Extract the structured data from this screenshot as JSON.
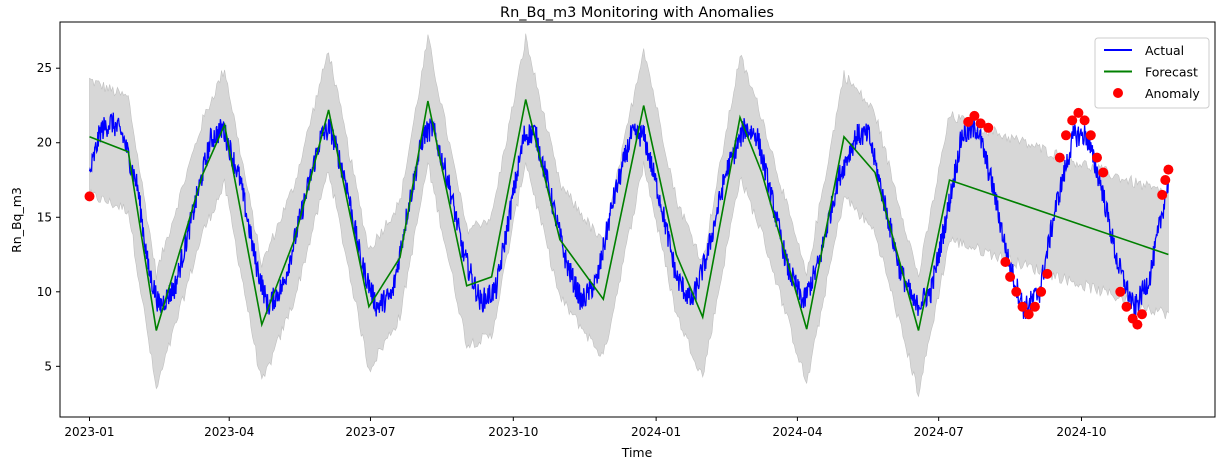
{
  "chart_data": {
    "type": "line",
    "title": "Rn_Bq_m3 Monitoring with Anomalies",
    "xlabel": "Time",
    "ylabel": "Rn_Bq_m3",
    "xlim": [
      "2022-12-13",
      "2024-12-26"
    ],
    "ylim": [
      1.6,
      28.1
    ],
    "grid": false,
    "legend_position": "top-right",
    "x_ticks": [
      "2023-01",
      "2023-04",
      "2023-07",
      "2023-10",
      "2024-01",
      "2024-04",
      "2024-07",
      "2024-10"
    ],
    "y_ticks": [
      5,
      10,
      15,
      20,
      25
    ],
    "series": [
      {
        "name": "Actual",
        "style": "line",
        "color": "#0000ff",
        "description": "daily readings with high-frequency noise of roughly ±0.8",
        "points": [
          [
            "2023-01-01",
            17.8
          ],
          [
            "2023-01-08",
            20.8
          ],
          [
            "2023-01-15",
            21.4
          ],
          [
            "2023-01-22",
            20.6
          ],
          [
            "2023-02-01",
            17.0
          ],
          [
            "2023-02-08",
            11.5
          ],
          [
            "2023-02-15",
            9.0
          ],
          [
            "2023-02-25",
            10.3
          ],
          [
            "2023-03-08",
            15.0
          ],
          [
            "2023-03-20",
            20.2
          ],
          [
            "2023-03-28",
            21.0
          ],
          [
            "2023-04-08",
            17.5
          ],
          [
            "2023-04-18",
            12.0
          ],
          [
            "2023-04-26",
            9.0
          ],
          [
            "2023-05-06",
            10.5
          ],
          [
            "2023-05-18",
            15.5
          ],
          [
            "2023-05-30",
            20.4
          ],
          [
            "2023-06-05",
            21.0
          ],
          [
            "2023-06-15",
            17.5
          ],
          [
            "2023-06-25",
            12.0
          ],
          [
            "2023-07-05",
            9.0
          ],
          [
            "2023-07-15",
            9.8
          ],
          [
            "2023-07-25",
            15.5
          ],
          [
            "2023-08-04",
            20.5
          ],
          [
            "2023-08-10",
            21.0
          ],
          [
            "2023-08-20",
            17.5
          ],
          [
            "2023-08-30",
            12.5
          ],
          [
            "2023-09-10",
            9.3
          ],
          [
            "2023-09-20",
            10.2
          ],
          [
            "2023-09-30",
            16.0
          ],
          [
            "2023-10-08",
            20.5
          ],
          [
            "2023-10-15",
            20.7
          ],
          [
            "2023-10-25",
            16.5
          ],
          [
            "2023-11-04",
            12.0
          ],
          [
            "2023-11-14",
            9.3
          ],
          [
            "2023-11-24",
            10.8
          ],
          [
            "2023-12-04",
            16.0
          ],
          [
            "2023-12-16",
            20.5
          ],
          [
            "2023-12-24",
            20.5
          ],
          [
            "2024-01-04",
            16.0
          ],
          [
            "2024-01-14",
            11.0
          ],
          [
            "2024-01-24",
            9.3
          ],
          [
            "2024-02-03",
            12.5
          ],
          [
            "2024-02-15",
            18.0
          ],
          [
            "2024-02-27",
            21.0
          ],
          [
            "2024-03-06",
            20.5
          ],
          [
            "2024-03-16",
            16.0
          ],
          [
            "2024-03-26",
            11.5
          ],
          [
            "2024-04-05",
            9.3
          ],
          [
            "2024-04-15",
            12.0
          ],
          [
            "2024-04-27",
            17.5
          ],
          [
            "2024-05-09",
            20.5
          ],
          [
            "2024-05-17",
            20.5
          ],
          [
            "2024-05-27",
            16.0
          ],
          [
            "2024-06-06",
            11.5
          ],
          [
            "2024-06-16",
            9.0
          ],
          [
            "2024-06-26",
            10.0
          ],
          [
            "2024-07-06",
            15.0
          ],
          [
            "2024-07-16",
            20.5
          ],
          [
            "2024-07-26",
            21.0
          ],
          [
            "2024-08-05",
            17.0
          ],
          [
            "2024-08-15",
            12.0
          ],
          [
            "2024-08-25",
            8.8
          ],
          [
            "2024-09-04",
            10.0
          ],
          [
            "2024-09-14",
            15.5
          ],
          [
            "2024-09-26",
            20.5
          ],
          [
            "2024-10-04",
            20.5
          ],
          [
            "2024-10-14",
            17.0
          ],
          [
            "2024-10-24",
            12.0
          ],
          [
            "2024-11-04",
            8.8
          ],
          [
            "2024-11-14",
            11.0
          ],
          [
            "2024-11-26",
            17.5
          ]
        ]
      },
      {
        "name": "Forecast",
        "style": "line",
        "color": "#008000",
        "points": [
          [
            "2023-01-01",
            20.4
          ],
          [
            "2023-01-26",
            19.4
          ],
          [
            "2023-02-13",
            7.4
          ],
          [
            "2023-03-15",
            17.9
          ],
          [
            "2023-03-29",
            21.2
          ],
          [
            "2023-04-22",
            7.8
          ],
          [
            "2023-05-13",
            13.5
          ],
          [
            "2023-06-04",
            22.2
          ],
          [
            "2023-06-30",
            9.0
          ],
          [
            "2023-07-20",
            12.3
          ],
          [
            "2023-08-07",
            22.8
          ],
          [
            "2023-09-01",
            10.4
          ],
          [
            "2023-09-17",
            11.0
          ],
          [
            "2023-10-09",
            22.9
          ],
          [
            "2023-10-31",
            13.5
          ],
          [
            "2023-11-28",
            9.5
          ],
          [
            "2023-12-24",
            22.5
          ],
          [
            "2024-01-14",
            12.5
          ],
          [
            "2024-01-31",
            8.3
          ],
          [
            "2024-02-24",
            21.7
          ],
          [
            "2024-03-09",
            18.0
          ],
          [
            "2024-04-07",
            7.5
          ],
          [
            "2024-05-01",
            20.4
          ],
          [
            "2024-05-21",
            18.0
          ],
          [
            "2024-06-18",
            7.4
          ],
          [
            "2024-07-08",
            17.5
          ],
          [
            "2024-11-26",
            12.5
          ]
        ]
      },
      {
        "name": "Anomaly",
        "style": "scatter",
        "color": "#ff0000",
        "points": [
          [
            "2023-01-01",
            16.4
          ],
          [
            "2024-07-20",
            21.4
          ],
          [
            "2024-07-24",
            21.8
          ],
          [
            "2024-07-28",
            21.3
          ],
          [
            "2024-08-02",
            21.0
          ],
          [
            "2024-08-13",
            12.0
          ],
          [
            "2024-08-16",
            11.0
          ],
          [
            "2024-08-20",
            10.0
          ],
          [
            "2024-08-24",
            9.0
          ],
          [
            "2024-08-28",
            8.5
          ],
          [
            "2024-09-01",
            9.0
          ],
          [
            "2024-09-05",
            10.0
          ],
          [
            "2024-09-09",
            11.2
          ],
          [
            "2024-09-17",
            19.0
          ],
          [
            "2024-09-21",
            20.5
          ],
          [
            "2024-09-25",
            21.5
          ],
          [
            "2024-09-29",
            22.0
          ],
          [
            "2024-10-03",
            21.5
          ],
          [
            "2024-10-07",
            20.5
          ],
          [
            "2024-10-11",
            19.0
          ],
          [
            "2024-10-15",
            18.0
          ],
          [
            "2024-10-26",
            10.0
          ],
          [
            "2024-10-30",
            9.0
          ],
          [
            "2024-11-03",
            8.2
          ],
          [
            "2024-11-06",
            7.8
          ],
          [
            "2024-11-09",
            8.5
          ],
          [
            "2024-11-22",
            16.5
          ],
          [
            "2024-11-24",
            17.5
          ],
          [
            "2024-11-26",
            18.2
          ]
        ]
      },
      {
        "name": "",
        "style": "band",
        "color": "#d3d3d3",
        "description": "grey prediction interval around the forecast",
        "upper": [
          [
            "2023-01-01",
            24.2
          ],
          [
            "2023-01-26",
            23.0
          ],
          [
            "2023-02-13",
            11.2
          ],
          [
            "2023-03-15",
            21.5
          ],
          [
            "2023-03-29",
            25.0
          ],
          [
            "2023-04-22",
            11.8
          ],
          [
            "2023-05-13",
            17.2
          ],
          [
            "2023-06-04",
            26.2
          ],
          [
            "2023-06-30",
            12.8
          ],
          [
            "2023-07-20",
            16.0
          ],
          [
            "2023-08-07",
            27.0
          ],
          [
            "2023-09-01",
            14.2
          ],
          [
            "2023-09-17",
            15.0
          ],
          [
            "2023-10-09",
            27.0
          ],
          [
            "2023-10-31",
            17.2
          ],
          [
            "2023-11-28",
            13.2
          ],
          [
            "2023-12-24",
            26.4
          ],
          [
            "2024-01-14",
            16.2
          ],
          [
            "2024-01-31",
            12.0
          ],
          [
            "2024-02-24",
            25.8
          ],
          [
            "2024-03-09",
            21.8
          ],
          [
            "2024-04-07",
            11.0
          ],
          [
            "2024-05-01",
            24.6
          ],
          [
            "2024-05-21",
            22.0
          ],
          [
            "2024-06-18",
            11.0
          ],
          [
            "2024-07-08",
            21.8
          ],
          [
            "2024-11-26",
            16.5
          ]
        ],
        "lower": [
          [
            "2023-01-01",
            16.5
          ],
          [
            "2023-01-26",
            15.5
          ],
          [
            "2023-02-13",
            3.4
          ],
          [
            "2023-03-15",
            14.0
          ],
          [
            "2023-03-29",
            17.2
          ],
          [
            "2023-04-22",
            3.8
          ],
          [
            "2023-05-13",
            9.5
          ],
          [
            "2023-06-04",
            18.2
          ],
          [
            "2023-06-30",
            4.8
          ],
          [
            "2023-07-20",
            8.3
          ],
          [
            "2023-08-07",
            18.6
          ],
          [
            "2023-09-01",
            6.5
          ],
          [
            "2023-09-17",
            7.0
          ],
          [
            "2023-10-09",
            18.8
          ],
          [
            "2023-10-31",
            9.6
          ],
          [
            "2023-11-28",
            5.6
          ],
          [
            "2023-12-24",
            18.6
          ],
          [
            "2024-01-14",
            8.5
          ],
          [
            "2024-01-31",
            4.3
          ],
          [
            "2024-02-24",
            17.7
          ],
          [
            "2024-03-09",
            14.0
          ],
          [
            "2024-04-07",
            3.8
          ],
          [
            "2024-05-01",
            16.4
          ],
          [
            "2024-05-21",
            14.0
          ],
          [
            "2024-06-18",
            3.2
          ],
          [
            "2024-07-08",
            13.5
          ],
          [
            "2024-11-26",
            8.5
          ]
        ]
      }
    ]
  }
}
